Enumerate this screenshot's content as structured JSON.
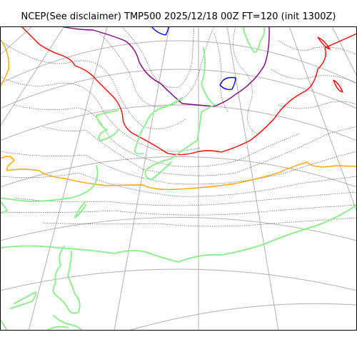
{
  "title": "NCEP(See disclaimer) TMP500 2025/12/18 00Z FT=120 (init 1300Z)",
  "colors": {
    "coastline": "#90ee90",
    "graticule": "#b0b0b0",
    "isotherm_minor": "#555555",
    "isotherm_orange": "#ffa500",
    "isotherm_red": "#ff0000",
    "isotherm_purple": "#800080",
    "isotherm_blue": "#0000ff"
  }
}
